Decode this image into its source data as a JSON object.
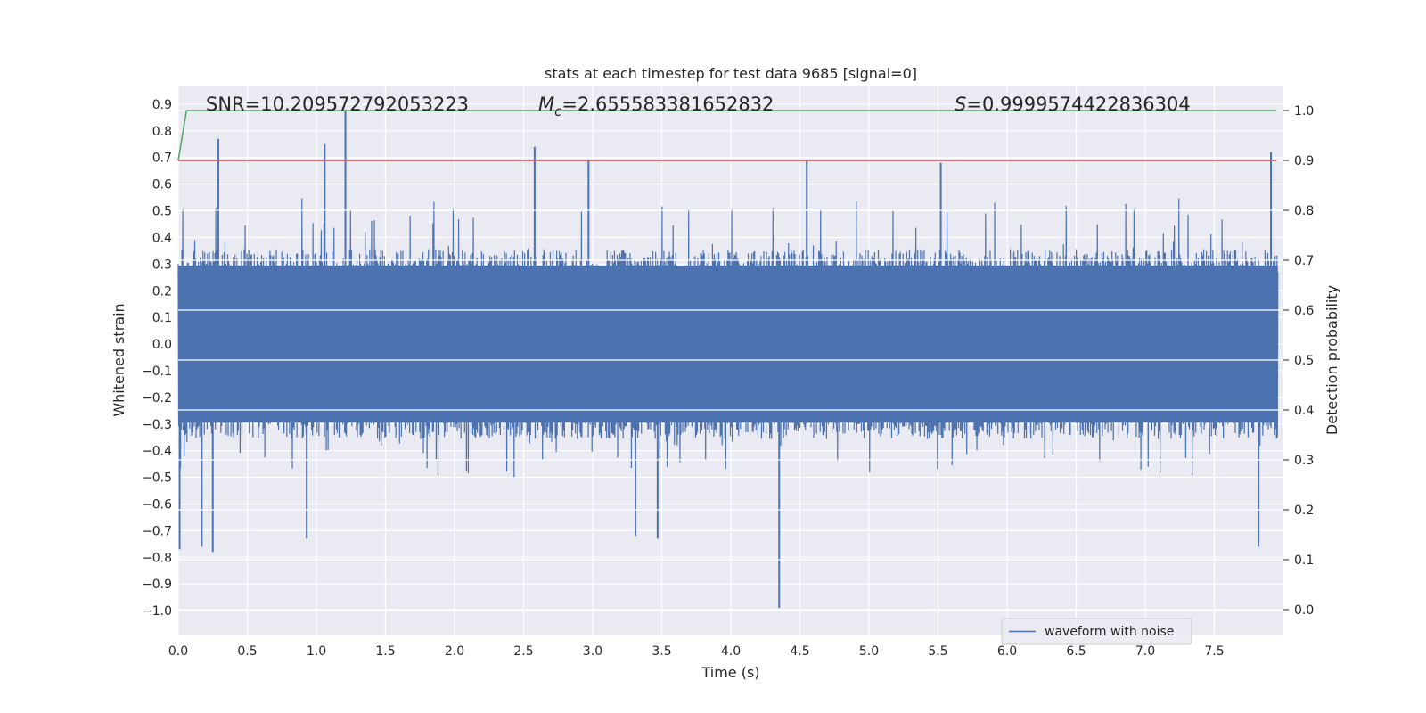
{
  "chart_data": {
    "type": "line",
    "title": "stats at each timestep for test data 9685 [signal=0]",
    "xlabel": "Time (s)",
    "ylabel": "Whitened strain",
    "y2label": "Detection probability",
    "xlim": [
      0.0,
      8.0
    ],
    "ylim": [
      -1.09,
      0.97
    ],
    "y2lim": [
      -0.05,
      1.05
    ],
    "xticks": [
      "0.0",
      "0.5",
      "1.0",
      "1.5",
      "2.0",
      "2.5",
      "3.0",
      "3.5",
      "4.0",
      "4.5",
      "5.0",
      "5.5",
      "6.0",
      "6.5",
      "7.0",
      "7.5"
    ],
    "yticks": [
      "0.9",
      "0.8",
      "0.7",
      "0.6",
      "0.5",
      "0.4",
      "0.3",
      "0.2",
      "0.1",
      "0.0",
      "−0.1",
      "−0.2",
      "−0.3",
      "−0.4",
      "−0.5",
      "−0.6",
      "−0.7",
      "−0.8",
      "−0.9",
      "−1.0"
    ],
    "y2ticks": [
      "1.0",
      "0.9",
      "0.8",
      "0.7",
      "0.6",
      "0.5",
      "0.4",
      "0.3",
      "0.2",
      "0.1",
      "0.0"
    ],
    "grid": true,
    "legend_position": "lower-right",
    "annotations": {
      "snr": "SNR=10.209572792053223",
      "mc_symbol": "M",
      "mc_sub": "c",
      "mc_value": "=2.655583381652832",
      "s_symbol": "S",
      "s_value": "=0.9999574422836304"
    },
    "series": [
      {
        "name": "waveform with noise",
        "color": "#4c72b0",
        "axis": "left",
        "approximate_envelope": {
          "core_range": [
            -0.31,
            0.31
          ],
          "typical_spike_range": [
            -0.5,
            0.55
          ],
          "peaks": [
            {
              "x": 1.21,
              "y": 0.88
            },
            {
              "x": 0.29,
              "y": 0.77
            },
            {
              "x": 1.06,
              "y": 0.75
            },
            {
              "x": 2.58,
              "y": 0.74
            },
            {
              "x": 7.91,
              "y": 0.72
            },
            {
              "x": 4.55,
              "y": 0.69
            },
            {
              "x": 2.97,
              "y": 0.69
            },
            {
              "x": 5.52,
              "y": 0.68
            },
            {
              "x": 4.35,
              "y": -0.99
            },
            {
              "x": 0.25,
              "y": -0.78
            },
            {
              "x": 0.01,
              "y": -0.77
            },
            {
              "x": 7.82,
              "y": -0.76
            },
            {
              "x": 0.17,
              "y": -0.76
            },
            {
              "x": 0.93,
              "y": -0.73
            },
            {
              "x": 3.47,
              "y": -0.73
            },
            {
              "x": 3.31,
              "y": -0.72
            }
          ]
        }
      },
      {
        "name": "",
        "color": "#55a868",
        "axis": "right",
        "x": [
          0.0,
          0.06,
          7.95
        ],
        "y": [
          0.9,
          1.0,
          1.0
        ]
      },
      {
        "name": "",
        "color": "#c44e52",
        "axis": "right",
        "x": [
          0.0,
          7.95
        ],
        "y": [
          0.9,
          0.9
        ]
      }
    ]
  }
}
